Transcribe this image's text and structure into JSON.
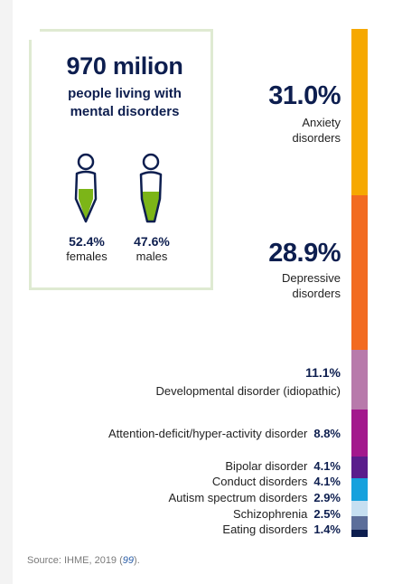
{
  "summary": {
    "total": "970 milion",
    "subtitle_line1": "people living with",
    "subtitle_line2": "mental disorders",
    "females": {
      "percent": "52.4%",
      "label": "females",
      "fill_fraction": 0.524
    },
    "males": {
      "percent": "47.6%",
      "label": "males",
      "fill_fraction": 0.476
    },
    "fill_color": "#7cb518",
    "outline_color": "#0d1e4f"
  },
  "chart_data": {
    "type": "bar",
    "orientation": "stacked-vertical",
    "categories": [
      "Anxiety disorders",
      "Depressive disorders",
      "Developmental disorder (idiopathic)",
      "Attention-deficit/hyper-activity disorder",
      "Bipolar disorder",
      "Conduct disorders",
      "Autism spectrum disorders",
      "Schizophrenia",
      "Eating disorders"
    ],
    "values": [
      31.0,
      28.9,
      11.1,
      8.8,
      4.1,
      4.1,
      2.9,
      2.5,
      1.4
    ],
    "value_labels": [
      "31.0%",
      "28.9%",
      "11.1%",
      "8.8%",
      "4.1%",
      "4.1%",
      "2.9%",
      "2.5%",
      "1.4%"
    ],
    "colors": [
      "#f6a800",
      "#f26b21",
      "#b87aab",
      "#a3188d",
      "#5a1d8c",
      "#16a1dd",
      "#c6dff1",
      "#5c6e9a",
      "#0d1e4f"
    ]
  },
  "labels": {
    "anxiety_pct": "31.0%",
    "anxiety_line1": "Anxiety",
    "anxiety_line2": "disorders",
    "depressive_pct": "28.9%",
    "depressive_line1": "Depressive",
    "depressive_line2": "disorders",
    "developmental_pct": "11.1%",
    "developmental_label": "Developmental disorder (idiopathic)",
    "adhd_label": "Attention-deficit/hyper-activity disorder",
    "adhd_pct": "8.8%",
    "bipolar_label": "Bipolar disorder",
    "bipolar_pct": "4.1%",
    "conduct_label": "Conduct disorders",
    "conduct_pct": "4.1%",
    "autism_label": "Autism spectrum disorders",
    "autism_pct": "2.9%",
    "schizophrenia_label": "Schizophrenia",
    "schizophrenia_pct": "2.5%",
    "eating_label": "Eating disorders",
    "eating_pct": "1.4%"
  },
  "source": {
    "prefix": "Source: IHME, 2019 (",
    "ref": "99",
    "suffix": ")."
  }
}
